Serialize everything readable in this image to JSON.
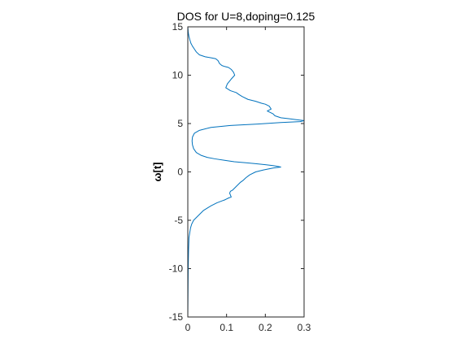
{
  "chart_data": {
    "type": "line",
    "title": "DOS for U=8,doping=0.125",
    "xlabel": "",
    "ylabel": "ω[t]",
    "xlim": [
      0,
      0.3
    ],
    "ylim": [
      -15,
      15
    ],
    "xticks": [
      0,
      0.1,
      0.2,
      0.3
    ],
    "yticks": [
      -15,
      -10,
      -5,
      0,
      5,
      10,
      15
    ],
    "xtick_labels": [
      "0",
      "0.1",
      "0.2",
      "0.3"
    ],
    "ytick_labels": [
      "-15",
      "-10",
      "-5",
      "0",
      "5",
      "10",
      "15"
    ],
    "grid": false,
    "colors": {
      "line": "#0072bd",
      "axes": "#262626"
    },
    "series": [
      {
        "x": [
          0.0,
          0.0005,
          0.001,
          0.002,
          0.003,
          0.005,
          0.008,
          0.012,
          0.017,
          0.022,
          0.03,
          0.045,
          0.06,
          0.072,
          0.078,
          0.082,
          0.088,
          0.095,
          0.105,
          0.112,
          0.118,
          0.121,
          0.112,
          0.102,
          0.098,
          0.11,
          0.125,
          0.132,
          0.14,
          0.155,
          0.175,
          0.19,
          0.2,
          0.21,
          0.215,
          0.205,
          0.22,
          0.225,
          0.24,
          0.26,
          0.28,
          0.3,
          0.29,
          0.24,
          0.18,
          0.11,
          0.06,
          0.03,
          0.017,
          0.012,
          0.011,
          0.012,
          0.015,
          0.022,
          0.035,
          0.05,
          0.07,
          0.095,
          0.12,
          0.15,
          0.175,
          0.2,
          0.22,
          0.235,
          0.24,
          0.22,
          0.195,
          0.175,
          0.16,
          0.15,
          0.142,
          0.135,
          0.13,
          0.125,
          0.12,
          0.115,
          0.11,
          0.108,
          0.11,
          0.112,
          0.105,
          0.1,
          0.095,
          0.088,
          0.075,
          0.06,
          0.048,
          0.04,
          0.035,
          0.03,
          0.025,
          0.02,
          0.015,
          0.01,
          0.007,
          0.005,
          0.003,
          0.002,
          0.001,
          0.0005,
          0.0
        ],
        "y": [
          15.0,
          14.8,
          14.5,
          14.2,
          14.0,
          13.7,
          13.3,
          13.0,
          12.7,
          12.4,
          12.1,
          11.9,
          11.8,
          11.7,
          11.5,
          11.2,
          11.0,
          10.9,
          10.8,
          10.6,
          10.3,
          10.0,
          9.6,
          9.1,
          8.7,
          8.4,
          8.2,
          8.0,
          7.8,
          7.5,
          7.3,
          7.1,
          7.0,
          6.8,
          6.5,
          6.3,
          6.0,
          5.8,
          5.6,
          5.5,
          5.4,
          5.3,
          5.2,
          5.1,
          4.95,
          4.8,
          4.6,
          4.3,
          4.0,
          3.6,
          3.2,
          2.8,
          2.4,
          2.0,
          1.7,
          1.5,
          1.35,
          1.2,
          1.05,
          0.95,
          0.85,
          0.75,
          0.65,
          0.55,
          0.5,
          0.4,
          0.2,
          0.0,
          -0.3,
          -0.6,
          -0.9,
          -1.1,
          -1.3,
          -1.5,
          -1.7,
          -1.9,
          -2.0,
          -2.2,
          -2.4,
          -2.6,
          -2.7,
          -2.8,
          -2.9,
          -3.0,
          -3.2,
          -3.5,
          -3.8,
          -4.0,
          -4.2,
          -4.4,
          -4.6,
          -4.8,
          -5.0,
          -5.4,
          -5.8,
          -6.3,
          -6.8,
          -8.0,
          -10.0,
          -12.5,
          -15.0
        ]
      }
    ]
  }
}
